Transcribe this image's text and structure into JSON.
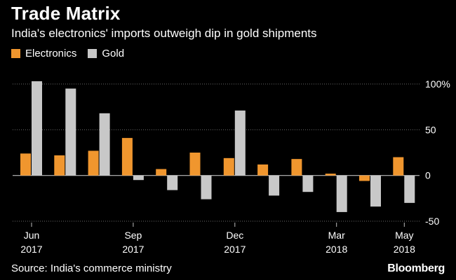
{
  "chart_data": {
    "type": "bar",
    "title": "Trade Matrix",
    "subtitle": "India's electronics' imports outweigh dip in gold shipments",
    "source": "Source: India's commerce ministry",
    "brand": "Bloomberg",
    "categories": [
      "Jun 2017",
      "Jul 2017",
      "Aug 2017",
      "Sep 2017",
      "Oct 2017",
      "Nov 2017",
      "Dec 2017",
      "Jan 2018",
      "Feb 2018",
      "Mar 2018",
      "Apr 2018",
      "May 2018"
    ],
    "series": [
      {
        "name": "Electronics",
        "color": "#f0962e",
        "values": [
          24,
          22,
          27,
          41,
          7,
          25,
          19,
          12,
          18,
          2,
          -6,
          20
        ]
      },
      {
        "name": "Gold",
        "color": "#c8c8c8",
        "values": [
          103,
          95,
          68,
          -5,
          -16,
          -26,
          71,
          -22,
          -18,
          -40,
          -34,
          -30
        ]
      }
    ],
    "ylim": [
      -50,
      100
    ],
    "yticks": [
      {
        "value": 100,
        "label": "100%"
      },
      {
        "value": 50,
        "label": "50"
      },
      {
        "value": 0,
        "label": "0"
      },
      {
        "value": -50,
        "label": "-50"
      }
    ],
    "xticks": [
      {
        "index": 0,
        "month": "Jun",
        "year": "2017"
      },
      {
        "index": 3,
        "month": "Sep",
        "year": "2017"
      },
      {
        "index": 6,
        "month": "Dec",
        "year": "2017"
      },
      {
        "index": 9,
        "month": "Mar",
        "year": "2018"
      },
      {
        "index": 11,
        "month": "May",
        "year": "2018"
      }
    ],
    "grid": true,
    "legend_position": "top-left"
  }
}
